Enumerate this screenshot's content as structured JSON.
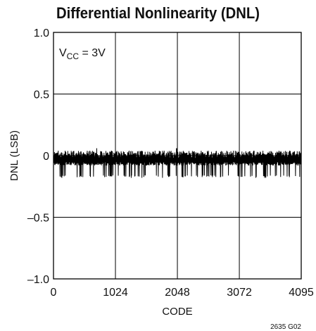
{
  "chart_data": {
    "type": "line",
    "title": "Differential Nonlinearity (DNL)",
    "xlabel": "CODE",
    "ylabel": "DNL (LSB)",
    "xlim": [
      0,
      4095
    ],
    "ylim": [
      -1.0,
      1.0
    ],
    "x_ticks": [
      "0",
      "1024",
      "2048",
      "3072",
      "4095"
    ],
    "y_ticks": [
      "1.0",
      "0.5",
      "0",
      "–0.5",
      "–1.0"
    ],
    "grid": true,
    "annotation": {
      "main": "V",
      "sub": "CC",
      "rest": " = 3V"
    },
    "figure_id": "2635 G02",
    "series": [
      {
        "color": "#000000",
        "envelope": {
          "typical_high": 0.04,
          "typical_low": -0.08,
          "spike_low": -0.15,
          "spike_min": -0.18,
          "spike_max": 0.06
        }
      }
    ]
  }
}
